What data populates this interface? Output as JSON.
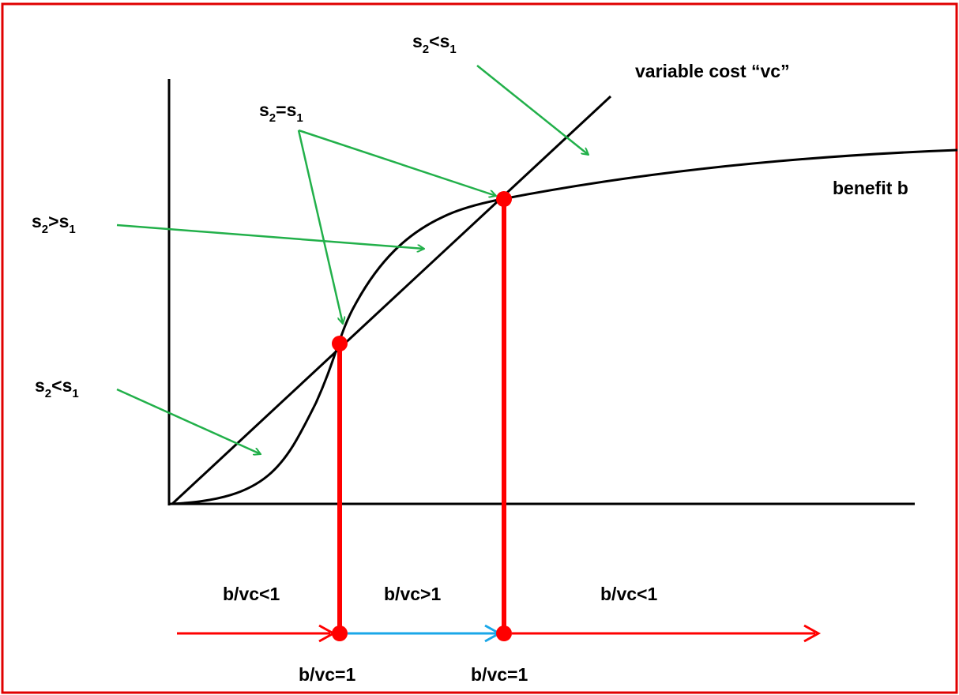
{
  "colors": {
    "frame": "#e00000",
    "curve": "#000000",
    "marker": "#ff0000",
    "annotation_arrow": "#22b04a",
    "increase_arrow": "#1aa7e8"
  },
  "labels": {
    "variable_cost": "variable cost “vc”",
    "benefit": "benefit b",
    "s2_less_s1_top": {
      "a": "s",
      "a_sub": "2",
      "op": "<s",
      "b_sub": "1"
    },
    "s2_eq_s1": {
      "a": "s",
      "a_sub": "2",
      "op": "=s",
      "b_sub": "1"
    },
    "s2_greater_s1": {
      "a": "s",
      "a_sub": "2",
      "op": ">s",
      "b_sub": "1"
    },
    "s2_less_s1_bottom": {
      "a": "s",
      "a_sub": "2",
      "op": "<s",
      "b_sub": "1"
    }
  },
  "ratio_labels": {
    "region_left": "b/vc<1",
    "region_middle": "b/vc>1",
    "region_right": "b/vc<1",
    "eq_left": "b/vc=1",
    "eq_right": "b/vc=1"
  }
}
